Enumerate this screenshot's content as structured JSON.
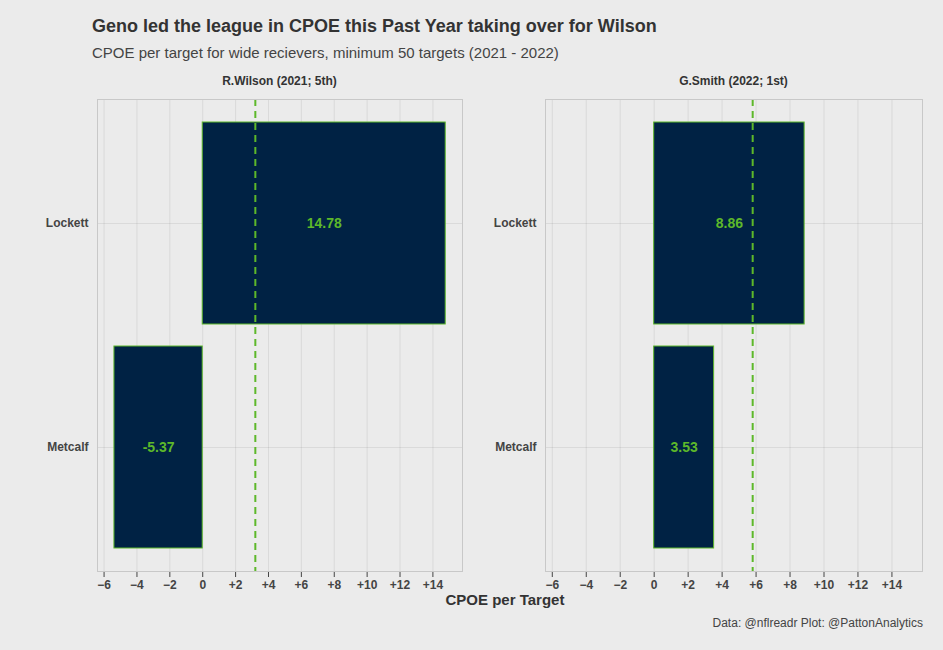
{
  "title": "Geno led the league in CPOE this Past Year taking over for Wilson",
  "subtitle": "CPOE per target for wide recievers, minimum 50 targets (2021 - 2022)",
  "xlabel": "CPOE per Target",
  "caption": "Data: @nflreadr Plot: @PattonAnalytics",
  "chart_data": [
    {
      "type": "bar",
      "title": "R.Wilson (2021; 5th)",
      "orientation": "horizontal",
      "categories": [
        "Lockett",
        "Metcalf"
      ],
      "values": [
        14.78,
        -5.37
      ],
      "reference_line": 3.2,
      "color": "#002244",
      "data_labels": true,
      "grid": true,
      "xlim": [
        -6.4,
        15.8
      ],
      "xticks": [
        {
          "value": -6,
          "label": "−6"
        },
        {
          "value": -4,
          "label": "−4"
        },
        {
          "value": -2,
          "label": "−2"
        },
        0,
        {
          "value": 2,
          "label": "+2"
        },
        {
          "value": 4,
          "label": "+4"
        },
        {
          "value": 6,
          "label": "+6"
        },
        {
          "value": 8,
          "label": "+8"
        },
        {
          "value": 10,
          "label": "+10"
        },
        {
          "value": 12,
          "label": "+12"
        },
        {
          "value": 14,
          "label": "+14"
        }
      ]
    },
    {
      "type": "bar",
      "title": "G.Smith (2022; 1st)",
      "orientation": "horizontal",
      "categories": [
        "Lockett",
        "Metcalf"
      ],
      "values": [
        8.86,
        3.53
      ],
      "reference_line": 5.8,
      "color": "#002244",
      "data_labels": true,
      "grid": true,
      "xlim": [
        -6.4,
        15.8
      ],
      "xticks": [
        {
          "value": -6,
          "label": "−6"
        },
        {
          "value": -4,
          "label": "−4"
        },
        {
          "value": -2,
          "label": "−2"
        },
        0,
        {
          "value": 2,
          "label": "+2"
        },
        {
          "value": 4,
          "label": "+4"
        },
        {
          "value": 6,
          "label": "+6"
        },
        {
          "value": 8,
          "label": "+8"
        },
        {
          "value": 10,
          "label": "+10"
        },
        {
          "value": 12,
          "label": "+12"
        },
        {
          "value": 14,
          "label": "+14"
        }
      ]
    }
  ]
}
